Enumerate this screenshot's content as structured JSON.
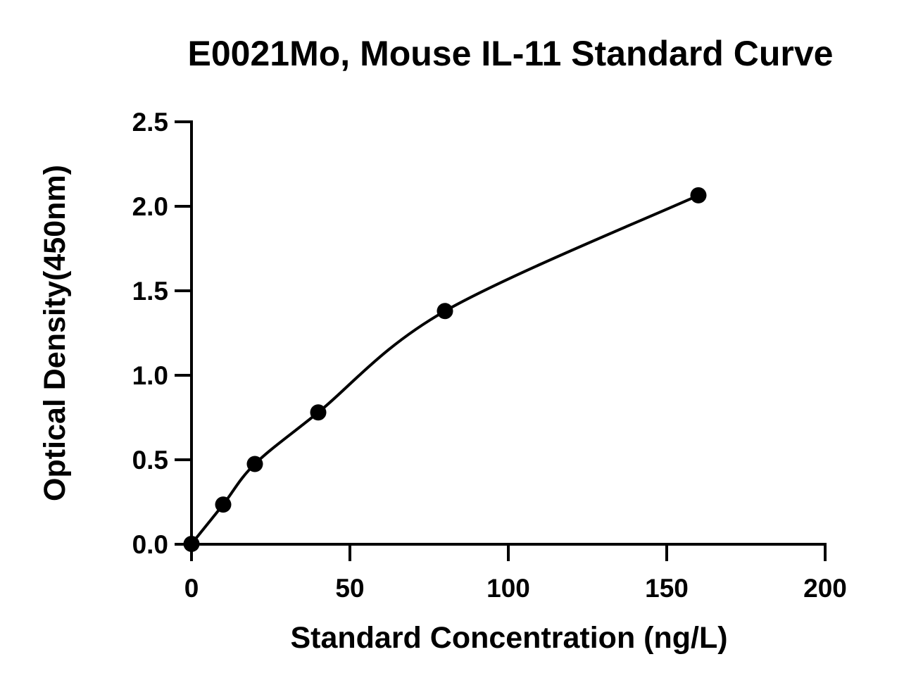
{
  "chart_data": {
    "type": "scatter",
    "title": "E0021Mo, Mouse IL-11 Standard Curve",
    "xlabel": "Standard Concentration (ng/L)",
    "ylabel": "Optical Density(450nm)",
    "xlim": [
      0,
      200
    ],
    "ylim": [
      0,
      2.5
    ],
    "x_ticks": [
      0,
      50,
      100,
      150,
      200
    ],
    "y_ticks": [
      0.0,
      0.5,
      1.0,
      1.5,
      2.0,
      2.5
    ],
    "x_tick_labels": [
      "0",
      "50",
      "100",
      "150",
      "200"
    ],
    "y_tick_labels": [
      "0.0",
      "0.5",
      "1.0",
      "1.5",
      "2.0",
      "2.5"
    ],
    "grid": false,
    "legend": "none",
    "series": [
      {
        "x": [
          0,
          10,
          20,
          40,
          80,
          160
        ],
        "y": [
          0.002,
          0.235,
          0.475,
          0.78,
          1.38,
          2.065
        ]
      }
    ],
    "fit_curve": "smooth fitted curve through points",
    "colors": {
      "marker": "#000000",
      "line": "#000000",
      "background": "#ffffff"
    }
  }
}
